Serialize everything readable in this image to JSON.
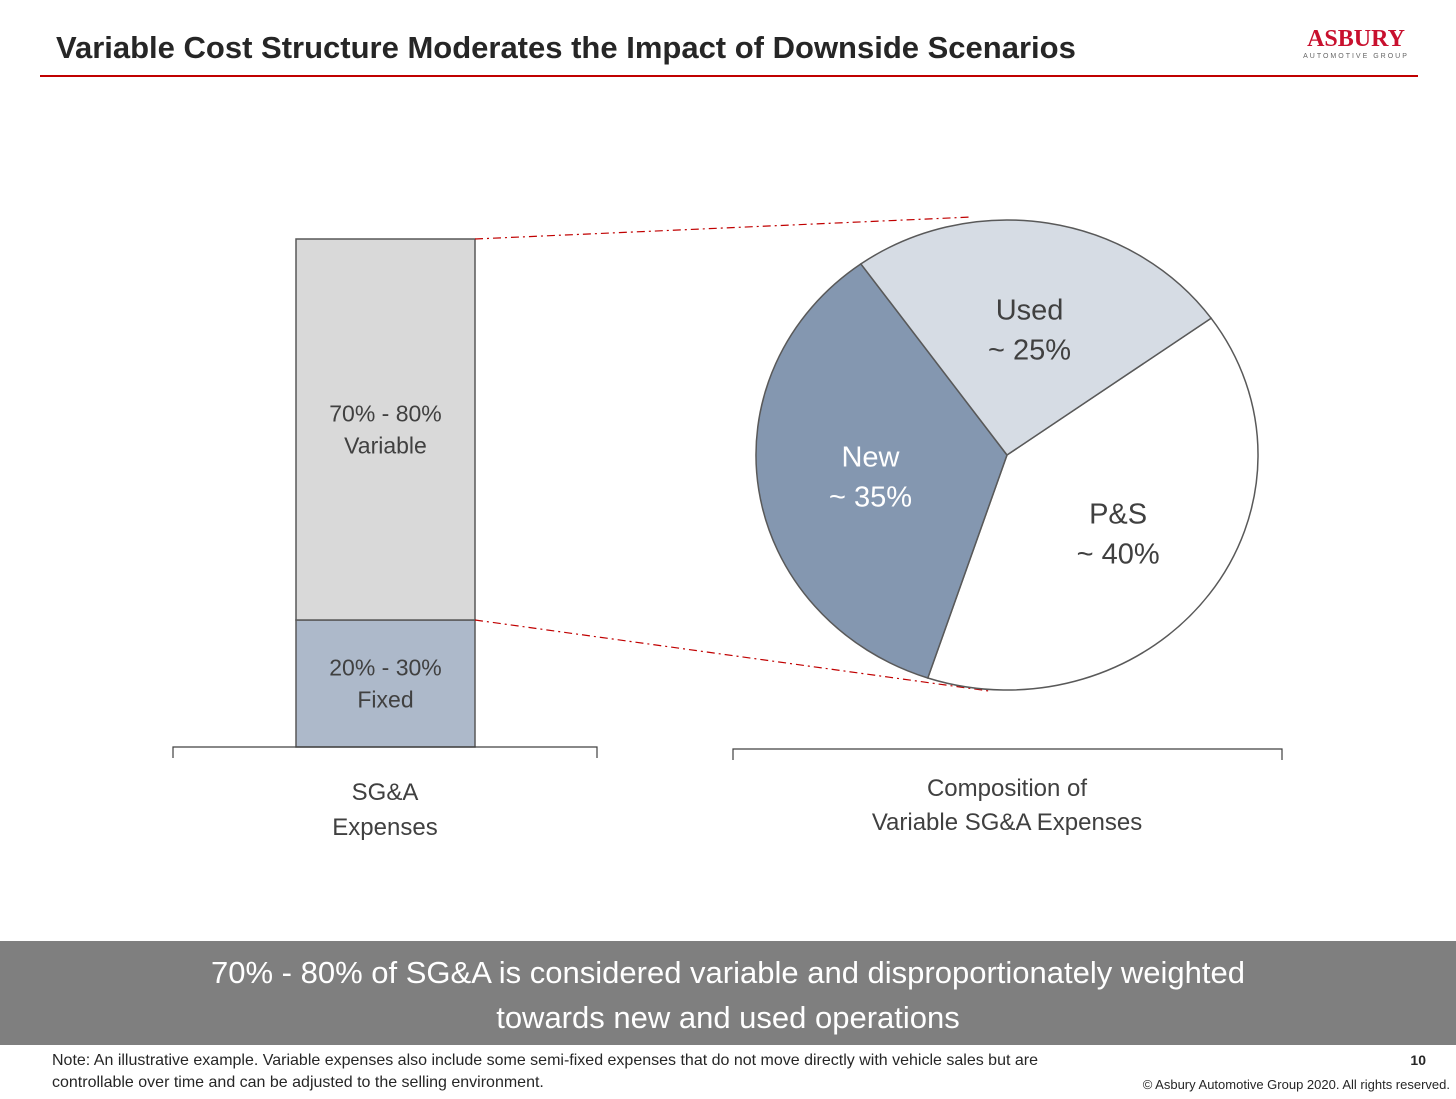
{
  "header": {
    "title": "Variable Cost Structure Moderates the Impact of Downside Scenarios",
    "logo_main": "ASBURY",
    "logo_sub": "AUTOMOTIVE GROUP",
    "rule_color": "#c00000"
  },
  "chart_data": [
    {
      "type": "bar",
      "stacked": true,
      "categories": [
        "SG&A Expenses"
      ],
      "category_label_lines": [
        "SG&A",
        "Expenses"
      ],
      "series": [
        {
          "label_lines": [
            "20% - 30%",
            "Fixed"
          ],
          "range": [
            20,
            30
          ],
          "value": 25,
          "color": "#adb9ca"
        },
        {
          "label_lines": [
            "70% - 80%",
            "Variable"
          ],
          "range": [
            70,
            80
          ],
          "value": 75,
          "color": "#d9d9d9"
        }
      ]
    },
    {
      "type": "pie",
      "caption_lines": [
        "Composition of",
        "Variable SG&A Expenses"
      ],
      "slices": [
        {
          "label": "P&S",
          "value_text": "~ 40%",
          "value": 40,
          "color": "#ffffff",
          "text_color": "#404040"
        },
        {
          "label": "New",
          "value_text": "~ 35%",
          "value": 35,
          "color": "#8497b0",
          "text_color": "#ffffff"
        },
        {
          "label": "Used",
          "value_text": "~ 25%",
          "value": 25,
          "color": "#d6dce4",
          "text_color": "#404040"
        }
      ]
    }
  ],
  "connector_color": "#c00000",
  "banner": {
    "text": "70% - 80% of SG&A is considered variable and disproportionately weighted\ntowards new and used operations",
    "color": "#7f7f7f"
  },
  "footer": {
    "note": "Note:  An illustrative example. Variable expenses also include some semi-fixed expenses that do not move directly with vehicle sales but are controllable over time and can be adjusted to the selling environment.",
    "page_number": "10",
    "copyright": "© Asbury Automotive Group 2020. All rights reserved."
  }
}
